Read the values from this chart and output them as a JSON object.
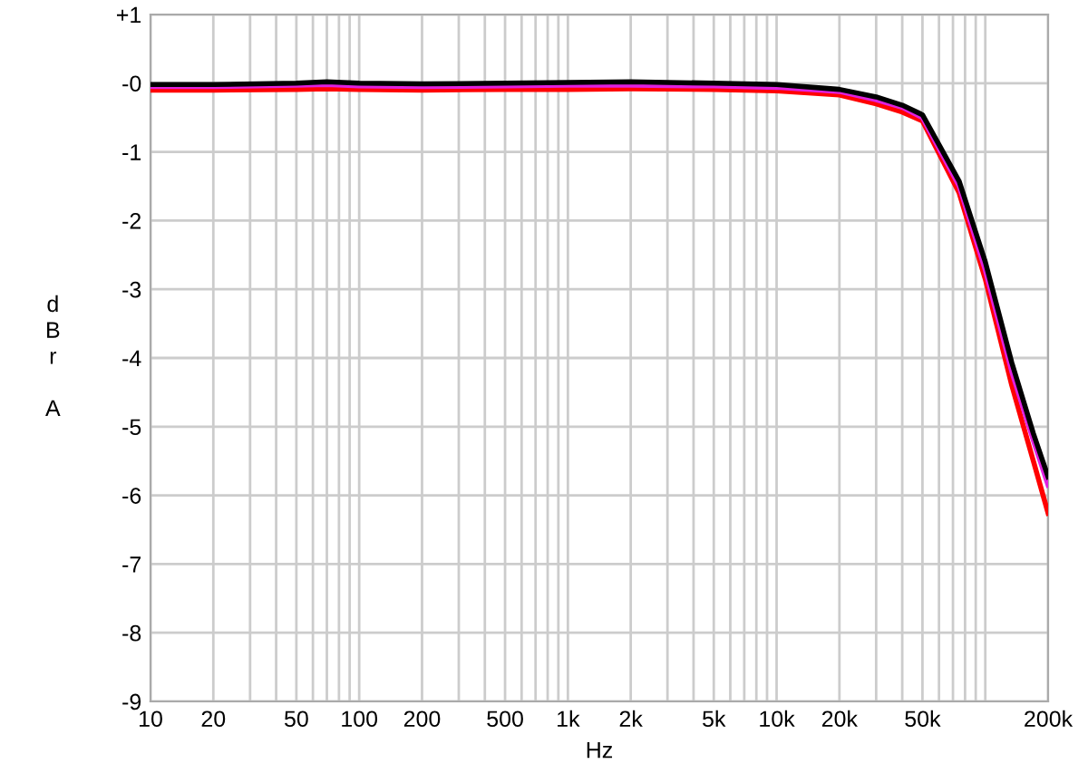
{
  "chart_data": {
    "type": "line",
    "xlabel": "Hz",
    "ylabel": "dBr A",
    "log": "x",
    "xlim": [
      10,
      200000
    ],
    "ylim": [
      -9,
      1
    ],
    "xticks": [
      {
        "value": 10,
        "label": "10"
      },
      {
        "value": 20,
        "label": "20"
      },
      {
        "value": 30,
        "label": null
      },
      {
        "value": 40,
        "label": null
      },
      {
        "value": 50,
        "label": "50"
      },
      {
        "value": 60,
        "label": null
      },
      {
        "value": 70,
        "label": null
      },
      {
        "value": 80,
        "label": null
      },
      {
        "value": 90,
        "label": null
      },
      {
        "value": 100,
        "label": "100"
      },
      {
        "value": 200,
        "label": "200"
      },
      {
        "value": 300,
        "label": null
      },
      {
        "value": 400,
        "label": null
      },
      {
        "value": 500,
        "label": "500"
      },
      {
        "value": 600,
        "label": null
      },
      {
        "value": 700,
        "label": null
      },
      {
        "value": 800,
        "label": null
      },
      {
        "value": 900,
        "label": null
      },
      {
        "value": 1000,
        "label": "1k"
      },
      {
        "value": 2000,
        "label": "2k"
      },
      {
        "value": 3000,
        "label": null
      },
      {
        "value": 4000,
        "label": null
      },
      {
        "value": 5000,
        "label": "5k"
      },
      {
        "value": 6000,
        "label": null
      },
      {
        "value": 7000,
        "label": null
      },
      {
        "value": 8000,
        "label": null
      },
      {
        "value": 9000,
        "label": null
      },
      {
        "value": 10000,
        "label": "10k"
      },
      {
        "value": 20000,
        "label": "20k"
      },
      {
        "value": 30000,
        "label": null
      },
      {
        "value": 40000,
        "label": null
      },
      {
        "value": 50000,
        "label": "50k"
      },
      {
        "value": 60000,
        "label": null
      },
      {
        "value": 70000,
        "label": null
      },
      {
        "value": 80000,
        "label": null
      },
      {
        "value": 90000,
        "label": null
      },
      {
        "value": 100000,
        "label": null
      },
      {
        "value": 200000,
        "label": "200k"
      }
    ],
    "yticks": [
      {
        "value": 1,
        "label": "+1"
      },
      {
        "value": 0,
        "label": "-0"
      },
      -1,
      -2,
      -3,
      -4,
      -5,
      -6,
      -7,
      -8,
      -9
    ],
    "grid": true,
    "line_style": "solid",
    "marker": "none",
    "x": [
      10,
      20,
      50,
      70,
      100,
      200,
      500,
      1000,
      2000,
      5000,
      10000,
      20000,
      30000,
      40000,
      50000,
      75000,
      100000,
      134000,
      170000,
      200000
    ],
    "series": [
      {
        "color": "#ff0000",
        "values": [
          -0.1,
          -0.1,
          -0.09,
          -0.08,
          -0.09,
          -0.1,
          -0.09,
          -0.09,
          -0.08,
          -0.09,
          -0.11,
          -0.17,
          -0.3,
          -0.42,
          -0.55,
          -1.6,
          -2.85,
          -4.4,
          -5.5,
          -6.26
        ]
      },
      {
        "color": "#e020e0",
        "values": [
          -0.05,
          -0.05,
          -0.03,
          -0.02,
          -0.04,
          -0.05,
          -0.04,
          -0.03,
          -0.03,
          -0.04,
          -0.06,
          -0.12,
          -0.24,
          -0.35,
          -0.5,
          -1.5,
          -2.72,
          -4.2,
          -5.2,
          -5.85
        ]
      },
      {
        "color": "#000000",
        "values": [
          -0.02,
          -0.02,
          0.0,
          0.02,
          0.0,
          -0.01,
          0.0,
          0.01,
          0.02,
          0.0,
          -0.02,
          -0.09,
          -0.2,
          -0.32,
          -0.46,
          -1.43,
          -2.6,
          -4.07,
          -5.1,
          -5.73
        ]
      }
    ]
  }
}
